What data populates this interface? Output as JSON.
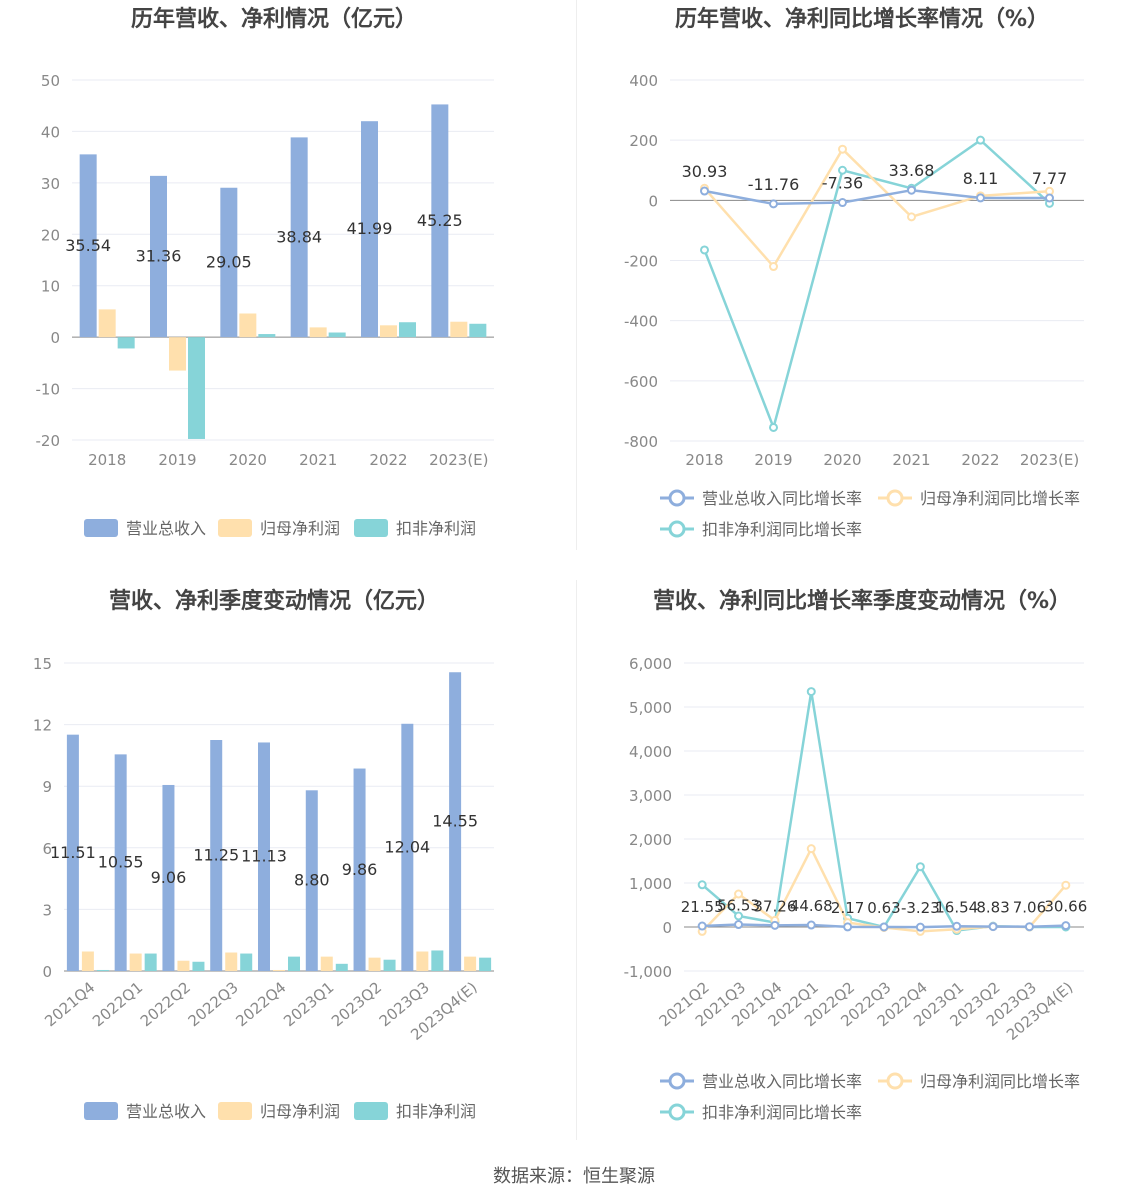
{
  "footer": {
    "source": "数据来源：恒生聚源"
  },
  "colors": {
    "revenue": "#8eaedd",
    "parent_profit": "#ffe0ad",
    "deducted_profit": "#86d4d8",
    "axis_text": "#888888",
    "label_text": "#333333",
    "title_text": "#444444",
    "grid": "#e9ebf3"
  },
  "chart_data": [
    {
      "type": "bar",
      "title": "历年营收、净利情况（亿元）",
      "categories": [
        "2018",
        "2019",
        "2020",
        "2021",
        "2022",
        "2023(E)"
      ],
      "yticks": [
        "50",
        "40",
        "30",
        "20",
        "10",
        "0",
        "-10",
        "-20"
      ],
      "ylim": [
        -20,
        50
      ],
      "grid": true,
      "legend_position": "bottom",
      "series": [
        {
          "name": "营业总收入",
          "values": [
            35.54,
            31.36,
            29.05,
            38.84,
            41.99,
            45.25
          ],
          "labels": [
            "35.54",
            "31.36",
            "29.05",
            "38.84",
            "41.99",
            "45.25"
          ]
        },
        {
          "name": "归母净利润",
          "values": [
            5.4,
            -6.5,
            4.6,
            1.9,
            2.3,
            3.0
          ]
        },
        {
          "name": "扣非净利润",
          "values": [
            -2.2,
            -19.8,
            0.6,
            0.9,
            2.9,
            2.6
          ]
        }
      ]
    },
    {
      "type": "line",
      "title": "历年营收、净利同比增长率情况（%）",
      "categories": [
        "2018",
        "2019",
        "2020",
        "2021",
        "2022",
        "2023(E)"
      ],
      "yticks": [
        "400",
        "200",
        "0",
        "-200",
        "-400",
        "-600",
        "-800"
      ],
      "ylim": [
        -800,
        400
      ],
      "grid": true,
      "legend_position": "bottom",
      "series": [
        {
          "name": "营业总收入同比增长率",
          "values": [
            30.93,
            -11.76,
            -7.36,
            33.68,
            8.11,
            7.77
          ],
          "labels": [
            "30.93",
            "-11.76",
            "-7.36",
            "33.68",
            "8.11",
            "7.77"
          ]
        },
        {
          "name": "归母净利润同比增长率",
          "values": [
            40,
            -220,
            170,
            -55,
            15,
            30
          ]
        },
        {
          "name": "扣非净利润同比增长率",
          "values": [
            -165,
            -755,
            100,
            40,
            200,
            -10
          ]
        }
      ]
    },
    {
      "type": "bar",
      "title": "营收、净利季度变动情况（亿元）",
      "categories": [
        "2021Q4",
        "2022Q1",
        "2022Q2",
        "2022Q3",
        "2022Q4",
        "2023Q1",
        "2023Q2",
        "2023Q3",
        "2023Q4(E)"
      ],
      "yticks": [
        "15",
        "12",
        "9",
        "6",
        "3",
        "0"
      ],
      "ylim": [
        0,
        15
      ],
      "grid": true,
      "legend_position": "bottom",
      "series": [
        {
          "name": "营业总收入",
          "values": [
            11.51,
            10.55,
            9.06,
            11.25,
            11.13,
            8.8,
            9.86,
            12.04,
            14.55
          ],
          "labels": [
            "11.51",
            "10.55",
            "9.06",
            "11.25",
            "11.13",
            "8.80",
            "9.86",
            "12.04",
            "14.55"
          ]
        },
        {
          "name": "归母净利润",
          "values": [
            0.95,
            0.85,
            0.5,
            0.9,
            0.05,
            0.7,
            0.65,
            0.95,
            0.7
          ]
        },
        {
          "name": "扣非净利润",
          "values": [
            0.05,
            0.85,
            0.45,
            0.85,
            0.7,
            0.35,
            0.55,
            1.0,
            0.65
          ]
        }
      ]
    },
    {
      "type": "line",
      "title": "营收、净利同比增长率季度变动情况（%）",
      "categories": [
        "2021Q2",
        "2021Q3",
        "2021Q4",
        "2022Q1",
        "2022Q2",
        "2022Q3",
        "2022Q4",
        "2023Q1",
        "2023Q2",
        "2023Q3",
        "2023Q4(E)"
      ],
      "yticks": [
        "6,000",
        "5,000",
        "4,000",
        "3,000",
        "2,000",
        "1,000",
        "0",
        "-1,000"
      ],
      "ylim": [
        -1000,
        6000
      ],
      "grid": true,
      "legend_position": "bottom",
      "series": [
        {
          "name": "营业总收入同比增长率",
          "values": [
            21.55,
            56.53,
            37.26,
            44.68,
            2.17,
            0.63,
            -3.23,
            16.54,
            8.83,
            7.06,
            30.66
          ],
          "labels": [
            "21.55",
            "56.53",
            "37.26",
            "44.68",
            "2.17",
            "0.63",
            "-3.23",
            "16.54",
            "8.83",
            "7.06",
            "30.66"
          ]
        },
        {
          "name": "归母净利润同比增长率",
          "values": [
            -100,
            750,
            150,
            1780,
            100,
            -10,
            -100,
            -50,
            10,
            0,
            950
          ]
        },
        {
          "name": "扣非净利润同比增长率",
          "values": [
            960,
            250,
            100,
            5350,
            200,
            0,
            1370,
            -80,
            20,
            0,
            0
          ]
        }
      ]
    }
  ]
}
